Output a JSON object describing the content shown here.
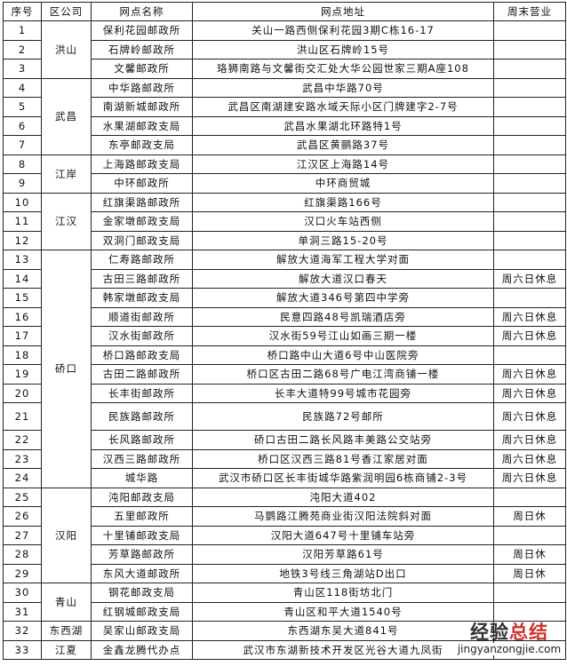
{
  "headers": [
    "序号",
    "区公司",
    "网点名称",
    "网点地址",
    "周末营业"
  ],
  "rows": [
    {
      "no": "1",
      "district": "洪山",
      "span": 3,
      "name": "保利花园邮政所",
      "address": "关山一路西侧保利花园3期C栋16-17",
      "weekend": ""
    },
    {
      "no": "2",
      "name": "石牌岭邮政所",
      "address": "洪山区石牌岭15号",
      "weekend": ""
    },
    {
      "no": "3",
      "name": "文馨邮政所",
      "address": "珞狮南路与文馨街交汇处大华公园世家三期A座108",
      "weekend": ""
    },
    {
      "no": "4",
      "district": "武昌",
      "span": 4,
      "name": "中华路邮政所",
      "address": "武昌中华路70号",
      "weekend": ""
    },
    {
      "no": "5",
      "name": "南湖新城邮政所",
      "address": "武昌区南湖建安路水域天际小区门牌建字2-7号",
      "weekend": ""
    },
    {
      "no": "6",
      "name": "水果湖邮政支局",
      "address": "武昌水果湖北环路特1号",
      "weekend": ""
    },
    {
      "no": "7",
      "name": "东亭邮政支局",
      "address": "武昌区黄鹂路37号",
      "weekend": ""
    },
    {
      "no": "8",
      "district": "江岸",
      "span": 2,
      "name": "上海路邮政支局",
      "address": "江汉区上海路14号",
      "weekend": ""
    },
    {
      "no": "9",
      "name": "中环邮政所",
      "address": "中环商贸城",
      "weekend": ""
    },
    {
      "no": "10",
      "district": "江汉",
      "span": 3,
      "name": "红旗渠路邮政所",
      "address": "红旗渠路166号",
      "weekend": ""
    },
    {
      "no": "11",
      "name": "金家墩邮政支局",
      "address": "汉口火车站西侧",
      "weekend": ""
    },
    {
      "no": "12",
      "name": "双洞门邮政支局",
      "address": "单洞三路15-20号",
      "weekend": ""
    },
    {
      "no": "13",
      "district": "硚口",
      "span": 12,
      "name": "仁寿路邮政所",
      "address": "解放大道海军工程大学对面",
      "weekend": ""
    },
    {
      "no": "14",
      "name": "古田三路邮政所",
      "address": "解放大道汉口春天",
      "weekend": "周六日休息"
    },
    {
      "no": "15",
      "name": "韩家墩邮政支局",
      "address": "解放大道346号第四中学旁",
      "weekend": ""
    },
    {
      "no": "16",
      "name": "顺道街邮政所",
      "address": "民意四路48号凯瑞酒店旁",
      "weekend": "周六日休息"
    },
    {
      "no": "17",
      "name": "汉水街邮政所",
      "address": "汉水街59号江山如画三期一楼",
      "weekend": "周六日休息"
    },
    {
      "no": "18",
      "name": "桥口路邮政支局",
      "address": "桥口路中山大道6号中山医院旁",
      "weekend": ""
    },
    {
      "no": "19",
      "name": "古田二路邮政所",
      "address": "桥口区古田二路68号广电江湾商铺一楼",
      "weekend": "周六日休息"
    },
    {
      "no": "20",
      "name": "长丰街邮政所",
      "address": "长丰大道特99号城市花园旁",
      "weekend": "周六日休息"
    },
    {
      "no": "21",
      "name": "民族路邮政所",
      "address": "民族路72号邮所",
      "weekend": "周六日休息",
      "tall": true
    },
    {
      "no": "22",
      "name": "长风路邮政所",
      "address": "硚口古田二路长风路丰美路公交站旁",
      "weekend": "周六日休息"
    },
    {
      "no": "23",
      "name": "汉西三路邮政所",
      "address": "桥口区汉西三路81号香江家居对面",
      "weekend": "周六日休息"
    },
    {
      "no": "24",
      "name": "城华路",
      "address": "武汉市硚口区长丰街城华路紫润明园6栋商铺2-3号",
      "weekend": "周六日休息"
    },
    {
      "no": "25",
      "district": "汉阳",
      "span": 5,
      "name": "沌阳邮政支局",
      "address": "沌阳大道402",
      "weekend": ""
    },
    {
      "no": "26",
      "name": "五里邮政所",
      "address": "马鹦路江腾苑商业街汉阳法院斜对面",
      "weekend": "周日休"
    },
    {
      "no": "27",
      "name": "十里铺邮政支局",
      "address": "汉阳大道647号十里铺车站旁",
      "weekend": ""
    },
    {
      "no": "28",
      "name": "芳草路邮政所",
      "address": "汉阳芳草路61号",
      "weekend": "周日休"
    },
    {
      "no": "29",
      "name": "东风大道邮政所",
      "address": "地铁3号线三角湖站D出口",
      "weekend": "周日休"
    },
    {
      "no": "30",
      "district": "青山",
      "span": 2,
      "name": "钢花邮政支局",
      "address": "青山区118街坊北门",
      "weekend": ""
    },
    {
      "no": "31",
      "name": "红钢城邮政支局",
      "address": "青山区和平大道1540号",
      "weekend": ""
    },
    {
      "no": "32",
      "district": "东西湖",
      "span": 1,
      "name": "吴家山邮政支局",
      "address": "东西湖东吴大道841号",
      "weekend": ""
    },
    {
      "no": "33",
      "district": "江夏",
      "span": 1,
      "name": "金鑫龙腾代办点",
      "address": "武汉市东湖新技术开发区光谷大道九凤街",
      "weekend": ""
    }
  ],
  "watermark": {
    "cn_a": "经验",
    "cn_b": "总结",
    "url": "jingyanzongjie.com",
    "accent": "#d0312d"
  }
}
